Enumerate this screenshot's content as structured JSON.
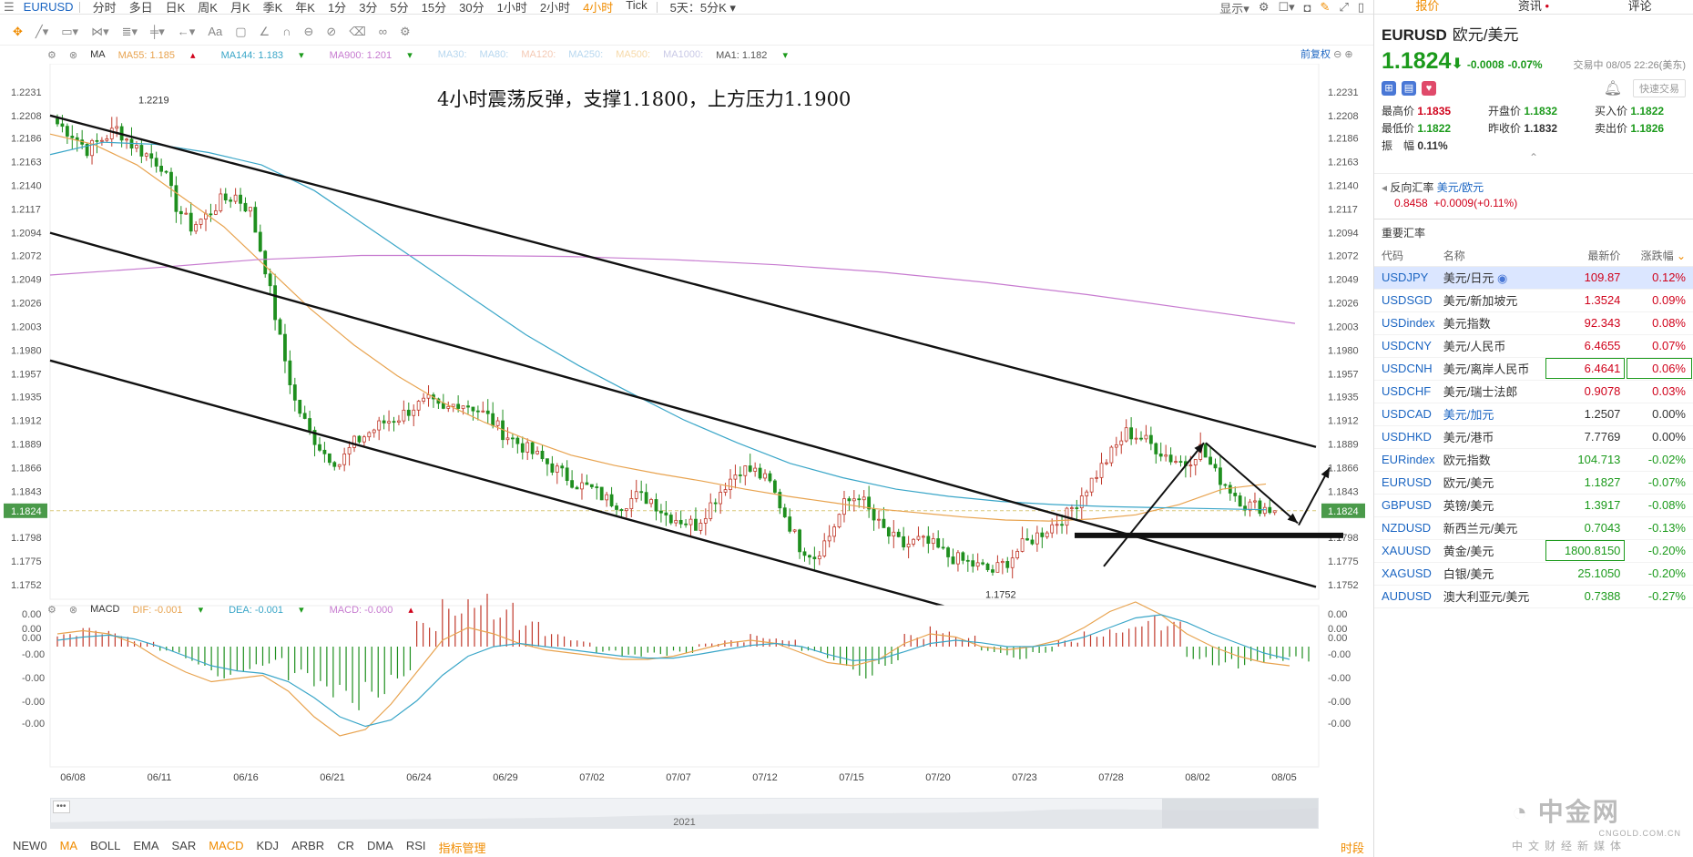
{
  "topbar": {
    "symbol": "EURUSD",
    "timeframes": [
      "分时",
      "多日",
      "日K",
      "周K",
      "月K",
      "季K",
      "年K",
      "1分",
      "3分",
      "5分",
      "15分",
      "30分",
      "1小时",
      "2小时",
      "4小时",
      "Tick"
    ],
    "active_timeframe": "4小时",
    "range_select": "5天：5分K",
    "display_label": "显示"
  },
  "indicators_bar": {
    "main": "MA",
    "ma55": "MA55: 1.185",
    "ma144": "MA144: 1.183",
    "ma900": "MA900: 1.201",
    "ma30": "MA30:",
    "ma80": "MA80:",
    "ma120": "MA120:",
    "ma250": "MA250:",
    "ma500": "MA500:",
    "ma1000": "MA1000:",
    "ma1": "MA1: 1.182",
    "adjust": "前复权"
  },
  "annotation": "4小时震荡反弹，支撑1.1800，上方压力1.1900",
  "chart_data": {
    "type": "candlestick",
    "symbol": "EURUSD",
    "timeframe": "4小时",
    "y_ticks": [
      "1.2231",
      "1.2208",
      "1.2186",
      "1.2163",
      "1.2140",
      "1.2117",
      "1.2094",
      "1.2072",
      "1.2049",
      "1.2026",
      "1.2003",
      "1.1980",
      "1.1957",
      "1.1935",
      "1.1912",
      "1.1889",
      "1.1866",
      "1.1843",
      "1.1824",
      "1.1798",
      "1.1775",
      "1.1752"
    ],
    "ylim": [
      1.1738,
      1.2245
    ],
    "current_price": "1.1824",
    "high_label": "1.2219",
    "low_label": "1.1752",
    "x_labels": [
      "06/08",
      "06/11",
      "06/16",
      "06/21",
      "06/24",
      "06/29",
      "07/02",
      "07/07",
      "07/12",
      "07/15",
      "07/20",
      "07/23",
      "07/28",
      "08/02",
      "08/05"
    ],
    "year_label": "2021",
    "close_path": [
      1.22,
      1.219,
      1.2175,
      1.2185,
      1.2195,
      1.218,
      1.217,
      1.216,
      1.212,
      1.21,
      1.211,
      1.2125,
      1.213,
      1.2115,
      1.206,
      1.199,
      1.193,
      1.19,
      1.188,
      1.187,
      1.189,
      1.19,
      1.191,
      1.1915,
      1.1925,
      1.193,
      1.192,
      1.193,
      1.1925,
      1.1915,
      1.19,
      1.189,
      1.188,
      1.187,
      1.186,
      1.185,
      1.1845,
      1.1835,
      1.183,
      1.1838,
      1.1835,
      1.182,
      1.1815,
      1.181,
      1.183,
      1.185,
      1.1865,
      1.1862,
      1.185,
      1.182,
      1.179,
      1.178,
      1.18,
      1.183,
      1.184,
      1.1815,
      1.18,
      1.179,
      1.1795,
      1.179,
      1.178,
      1.1775,
      1.177,
      1.1765,
      1.1775,
      1.179,
      1.18,
      1.181,
      1.182,
      1.184,
      1.186,
      1.188,
      1.19,
      1.1895,
      1.1885,
      1.1875,
      1.187,
      1.1885,
      1.186,
      1.1845,
      1.183,
      1.1828,
      1.1824
    ],
    "ma55": [
      1.219,
      1.218,
      1.216,
      1.213,
      1.21,
      1.206,
      1.202,
      1.1985,
      1.1955,
      1.193,
      1.191,
      1.1893,
      1.1878,
      1.1868,
      1.186,
      1.1853,
      1.1845,
      1.1838,
      1.1832,
      1.1826,
      1.1822,
      1.1818,
      1.1815,
      1.1814,
      1.1816,
      1.182,
      1.183,
      1.1845,
      1.185
    ],
    "ma144": [
      1.217,
      1.2182,
      1.218,
      1.2172,
      1.216,
      1.2135,
      1.21,
      1.2065,
      1.203,
      1.1995,
      1.1965,
      1.1938,
      1.1912,
      1.189,
      1.187,
      1.1856,
      1.1845,
      1.1838,
      1.1833,
      1.183,
      1.1828,
      1.1827,
      1.1826,
      1.1825
    ],
    "ma900": [
      1.2053,
      1.206,
      1.2068,
      1.2072,
      1.2072,
      1.2071,
      1.2068,
      1.2063,
      1.2056,
      1.2046,
      1.2034,
      1.202,
      1.2006
    ],
    "trendlines": [
      {
        "from": [
          0,
          1.2208
        ],
        "to": [
          1,
          1.1886
        ]
      },
      {
        "from": [
          0,
          1.2094
        ],
        "to": [
          1,
          1.175
        ]
      },
      {
        "from": [
          0,
          1.197
        ],
        "to": [
          1,
          1.1632
        ]
      }
    ],
    "support": 1.18
  },
  "macd": {
    "label": "MACD",
    "dif": "DIF: -0.001",
    "dea": "DEA: -0.001",
    "macd": "MACD: -0.000",
    "y_ticks": [
      "0.00",
      "0.00",
      "0.00",
      "-0.00",
      "-0.00",
      "-0.00",
      "-0.00"
    ],
    "hist": [
      0.2,
      0.3,
      0.25,
      0.1,
      -0.1,
      -0.3,
      -0.5,
      -0.4,
      -0.3,
      -0.6,
      -0.9,
      -1.0,
      -0.8,
      -0.5,
      0.4,
      0.8,
      1.0,
      0.7,
      0.4,
      0.2,
      0.1,
      -0.1,
      -0.2,
      -0.15,
      -0.1,
      0.05,
      0.1,
      0.2,
      0.15,
      -0.1,
      -0.3,
      -0.5,
      -0.3,
      0.2,
      0.35,
      0.2,
      -0.1,
      -0.2,
      -0.1,
      0.1,
      0.25,
      0.35,
      0.5,
      0.4,
      -0.2,
      -0.3,
      -0.35,
      -0.3,
      -0.25
    ],
    "dif_line": [
      0.2,
      0.25,
      0.2,
      0.05,
      -0.2,
      -0.4,
      -0.55,
      -0.5,
      -0.45,
      -0.7,
      -1.1,
      -1.4,
      -1.3,
      -0.9,
      -0.4,
      0.1,
      0.3,
      0.2,
      0.05,
      -0.05,
      -0.1,
      -0.15,
      -0.2,
      -0.2,
      -0.15,
      -0.05,
      0.05,
      0.1,
      0.05,
      -0.1,
      -0.25,
      -0.3,
      -0.2,
      0.05,
      0.2,
      0.15,
      0.0,
      -0.05,
      -0.0,
      0.1,
      0.3,
      0.55,
      0.7,
      0.5,
      0.2,
      0.0,
      -0.15,
      -0.25,
      -0.3
    ],
    "dea_line": [
      0.1,
      0.15,
      0.18,
      0.12,
      0.0,
      -0.15,
      -0.3,
      -0.38,
      -0.42,
      -0.55,
      -0.8,
      -1.1,
      -1.25,
      -1.15,
      -0.85,
      -0.45,
      -0.15,
      0.0,
      0.05,
      0.0,
      -0.05,
      -0.1,
      -0.15,
      -0.18,
      -0.18,
      -0.12,
      -0.05,
      0.02,
      0.05,
      0.0,
      -0.12,
      -0.22,
      -0.2,
      -0.08,
      0.05,
      0.1,
      0.06,
      0.0,
      0.0,
      0.05,
      0.15,
      0.3,
      0.45,
      0.5,
      0.38,
      0.2,
      0.05,
      -0.1,
      -0.2
    ]
  },
  "bottombar": {
    "items": [
      "NEW0",
      "MA",
      "BOLL",
      "EMA",
      "SAR",
      "MACD",
      "KDJ",
      "ARBR",
      "CR",
      "DMA",
      "RSI",
      "指标管理"
    ],
    "active": [
      "MA",
      "MACD",
      "指标管理"
    ],
    "right": "时段"
  },
  "panel": {
    "tabs": [
      "报价",
      "资讯",
      "评论"
    ],
    "active_tab": "报价",
    "symbol": "EURUSD",
    "name": "欧元/美元",
    "price": "1.1824",
    "change": "-0.0008",
    "change_pct": "-0.07%",
    "time": "交易中 08/05 22:26(美东)",
    "quick_trade": "快速交易",
    "stats": [
      {
        "label": "最高价",
        "value": "1.1835",
        "color": "red"
      },
      {
        "label": "开盘价",
        "value": "1.1832",
        "color": "green"
      },
      {
        "label": "买入价",
        "value": "1.1822",
        "color": "green"
      },
      {
        "label": "最低价",
        "value": "1.1822",
        "color": "green"
      },
      {
        "label": "昨收价",
        "value": "1.1832",
        "color": "normal"
      },
      {
        "label": "卖出价",
        "value": "1.1826",
        "color": "green"
      },
      {
        "label": "振　幅",
        "value": "0.11%",
        "color": "normal"
      }
    ],
    "reverse_label": "反向汇率",
    "reverse_pair": "美元/欧元",
    "reverse_price": "0.8458",
    "reverse_change": "+0.0009(+0.11%)",
    "section_title": "重要汇率",
    "table_headers": [
      "代码",
      "名称",
      "最新价",
      "涨跌幅"
    ],
    "rows": [
      {
        "code": "USDJPY",
        "name": "美元/日元",
        "price": "109.87",
        "pct": "0.12%",
        "dir": "up"
      },
      {
        "code": "USDSGD",
        "name": "美元/新加坡元",
        "price": "1.3524",
        "pct": "0.09%",
        "dir": "up"
      },
      {
        "code": "USDindex",
        "name": "美元指数",
        "price": "92.343",
        "pct": "0.08%",
        "dir": "up"
      },
      {
        "code": "USDCNY",
        "name": "美元/人民币",
        "price": "6.4655",
        "pct": "0.07%",
        "dir": "up"
      },
      {
        "code": "USDCNH",
        "name": "美元/离岸人民币",
        "price": "6.4641",
        "pct": "0.06%",
        "dir": "up"
      },
      {
        "code": "USDCHF",
        "name": "美元/瑞士法郎",
        "price": "0.9078",
        "pct": "0.03%",
        "dir": "up"
      },
      {
        "code": "USDCAD",
        "name": "美元/加元",
        "price": "1.2507",
        "pct": "0.00%",
        "dir": "flat"
      },
      {
        "code": "USDHKD",
        "name": "美元/港币",
        "price": "7.7769",
        "pct": "0.00%",
        "dir": "flat"
      },
      {
        "code": "EURindex",
        "name": "欧元指数",
        "price": "104.713",
        "pct": "-0.02%",
        "dir": "down"
      },
      {
        "code": "EURUSD",
        "name": "欧元/美元",
        "price": "1.1827",
        "pct": "-0.07%",
        "dir": "down"
      },
      {
        "code": "GBPUSD",
        "name": "英镑/美元",
        "price": "1.3917",
        "pct": "-0.08%",
        "dir": "down"
      },
      {
        "code": "NZDUSD",
        "name": "新西兰元/美元",
        "price": "0.7043",
        "pct": "-0.13%",
        "dir": "down"
      },
      {
        "code": "XAUUSD",
        "name": "黄金/美元",
        "price": "1800.8150",
        "pct": "-0.20%",
        "dir": "down"
      },
      {
        "code": "XAGUSD",
        "name": "白银/美元",
        "price": "25.1050",
        "pct": "-0.20%",
        "dir": "down"
      },
      {
        "code": "AUDUSD",
        "name": "澳大利亚元/美元",
        "price": "0.7388",
        "pct": "-0.27%",
        "dir": "down"
      }
    ],
    "colors": {
      "up": "#d0021b",
      "down": "#1b9a1b",
      "accent": "#f08c00",
      "link": "#1b65c2"
    }
  },
  "watermark": {
    "main": "中金网",
    "sub": "中文财经新媒体",
    "url": "CNGOLD.COM.CN"
  }
}
